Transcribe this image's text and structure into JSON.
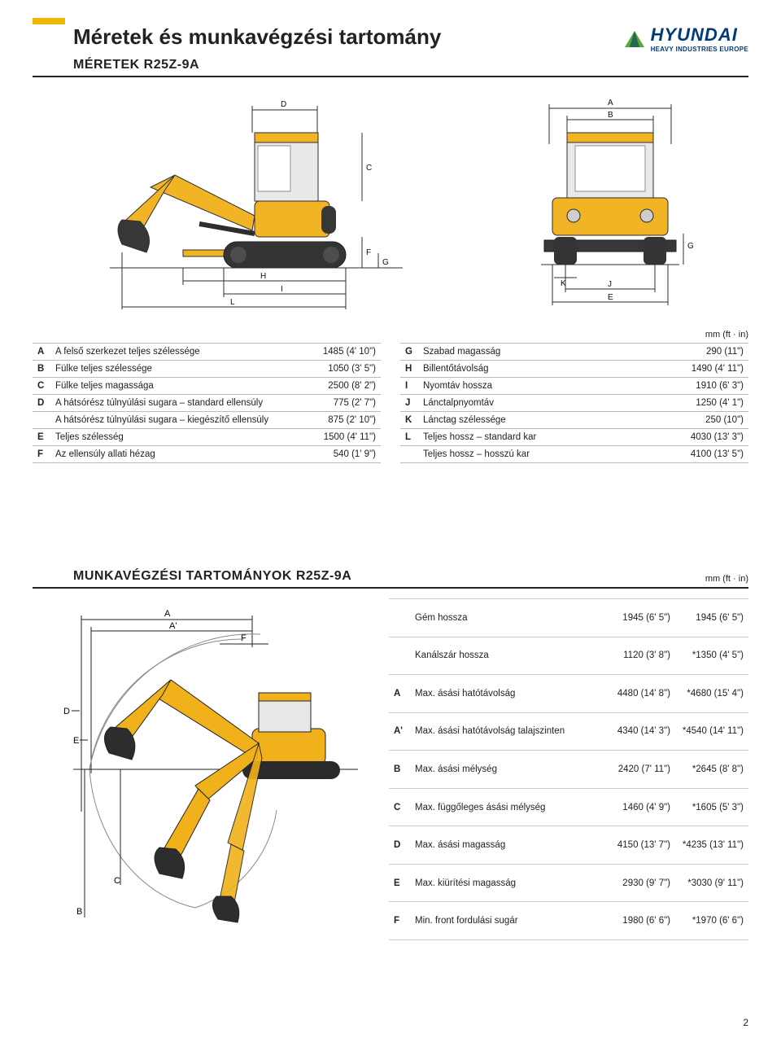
{
  "brand": {
    "name": "HYUNDAI",
    "tagline": "HEAVY INDUSTRIES EUROPE",
    "accent": "#5aa82f",
    "blue": "#003a78"
  },
  "page_title": "Méretek és munkavégzési tartomány",
  "section1_title": "MÉRETEK R25Z-9A",
  "unit_label": "mm (ft · in)",
  "page_number": "2",
  "dims_left": [
    {
      "k": "A",
      "label": "A felső szerkezet teljes szélessége",
      "v": "1485 (4' 10\")"
    },
    {
      "k": "B",
      "label": "Fülke teljes szélessége",
      "v": "1050 (3' 5\")"
    },
    {
      "k": "C",
      "label": "Fülke teljes magassága",
      "v": "2500 (8' 2\")"
    },
    {
      "k": "D",
      "label": "A hátsórész túlnyúlási sugara – standard ellensúly",
      "v": "775 (2' 7\")"
    },
    {
      "k": "",
      "label": "A hátsórész túlnyúlási sugara – kiegészítő ellensúly",
      "v": "875 (2' 10\")"
    },
    {
      "k": "E",
      "label": "Teljes szélesség",
      "v": "1500 (4' 11\")"
    },
    {
      "k": "F",
      "label": "Az ellensúly allati hézag",
      "v": "540 (1' 9\")"
    }
  ],
  "dims_right": [
    {
      "k": "G",
      "label": "Szabad magasság",
      "v": "290 (11\")"
    },
    {
      "k": "H",
      "label": "Billentőtávolság",
      "v": "1490 (4' 11\")"
    },
    {
      "k": "I",
      "label": "Nyomtáv hossza",
      "v": "1910 (6' 3\")"
    },
    {
      "k": "J",
      "label": "Lánctalpnyomtáv",
      "v": "1250 (4' 1\")"
    },
    {
      "k": "K",
      "label": "Lánctag szélessége",
      "v": "250 (10\")"
    },
    {
      "k": "L",
      "label": "Teljes hossz – standard kar",
      "v": "4030 (13' 3\")"
    },
    {
      "k": "",
      "label": "Teljes hossz – hosszú kar",
      "v": "4100 (13' 5\")"
    }
  ],
  "section2_title": "MUNKAVÉGZÉSI TARTOMÁNYOK R25Z-9A",
  "ranges": [
    {
      "k": "",
      "label": "Gém hossza",
      "v1": "1945 (6' 5\")",
      "v2": "1945 (6' 5\")"
    },
    {
      "k": "",
      "label": "Kanálszár hossza",
      "v1": "1120 (3' 8\")",
      "v2": "*1350 (4' 5\")"
    },
    {
      "k": "A",
      "label": "Max. ásási hatótávolság",
      "v1": "4480 (14' 8\")",
      "v2": "*4680 (15' 4\")"
    },
    {
      "k": "A'",
      "label": "Max. ásási hatótávolság talajszinten",
      "v1": "4340 (14' 3\")",
      "v2": "*4540 (14' 11\")"
    },
    {
      "k": "B",
      "label": "Max. ásási mélység",
      "v1": "2420 (7' 11\")",
      "v2": "*2645 (8' 8\")"
    },
    {
      "k": "C",
      "label": "Max. függőleges ásási mélység",
      "v1": "1460 (4' 9\")",
      "v2": "*1605 (5' 3\")"
    },
    {
      "k": "D",
      "label": "Max. ásási magasság",
      "v1": "4150 (13' 7\")",
      "v2": "*4235 (13' 11\")"
    },
    {
      "k": "E",
      "label": "Max. kiürítési magasság",
      "v1": "2930 (9' 7\")",
      "v2": "*3030 (9' 11\")"
    },
    {
      "k": "F",
      "label": "Min. front fordulási sugár",
      "v1": "1980 (6' 6\")",
      "v2": "*1970 (6' 6\")"
    }
  ],
  "colors": {
    "body_yellow": "#f0b11a",
    "dark": "#2d2d2d",
    "track": "#2a2a2a",
    "cab_glass": "#e8e8e8",
    "dim_line": "#222222"
  },
  "diagram_labels": {
    "side": {
      "D": "D",
      "C": "C",
      "F": "F",
      "G": "G",
      "H": "H",
      "I": "I",
      "L": "L"
    },
    "front": {
      "A": "A",
      "B": "B",
      "E": "E",
      "J": "J",
      "K": "K",
      "G2": "G"
    },
    "range": {
      "A": "A",
      "Ap": "A'",
      "F": "F",
      "D": "D",
      "E": "E",
      "B": "B",
      "C": "C"
    }
  }
}
